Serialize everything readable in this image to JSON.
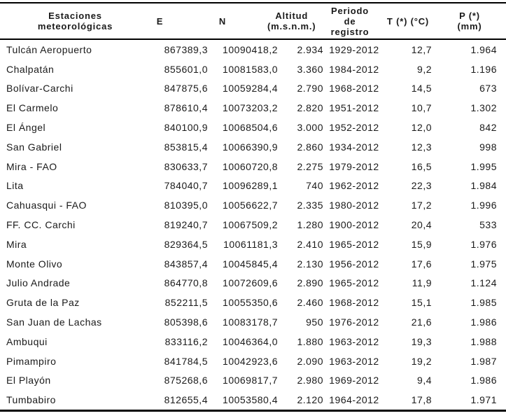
{
  "table": {
    "columns": [
      {
        "key": "station",
        "label": "Estaciones\nmeteorológicas"
      },
      {
        "key": "e",
        "label": "E"
      },
      {
        "key": "n",
        "label": "N"
      },
      {
        "key": "altitud",
        "label": "Altitud\n(m.s.n.m.)"
      },
      {
        "key": "periodo",
        "label": "Periodo\nde\nregistro"
      },
      {
        "key": "t",
        "label": "T (*) (°C)"
      },
      {
        "key": "p",
        "label": "P (*)\n(mm)"
      }
    ],
    "rows": [
      {
        "station": "Tulcán Aeropuerto",
        "e": "867389,3",
        "n": "10090418,2",
        "altitud": "2.934",
        "periodo": "1929-2012",
        "t": "12,7",
        "p": "1.964"
      },
      {
        "station": "Chalpatán",
        "e": "855601,0",
        "n": "10081583,0",
        "altitud": "3.360",
        "periodo": "1984-2012",
        "t": "9,2",
        "p": "1.196"
      },
      {
        "station": "Bolívar-Carchi",
        "e": "847875,6",
        "n": "10059284,4",
        "altitud": "2.790",
        "periodo": "1968-2012",
        "t": "14,5",
        "p": "673"
      },
      {
        "station": "El Carmelo",
        "e": "878610,4",
        "n": "10073203,2",
        "altitud": "2.820",
        "periodo": "1951-2012",
        "t": "10,7",
        "p": "1.302"
      },
      {
        "station": "El Ángel",
        "e": "840100,9",
        "n": "10068504,6",
        "altitud": "3.000",
        "periodo": "1952-2012",
        "t": "12,0",
        "p": "842"
      },
      {
        "station": "San Gabriel",
        "e": "853815,4",
        "n": "10066390,9",
        "altitud": "2.860",
        "periodo": "1934-2012",
        "t": "12,3",
        "p": "998"
      },
      {
        "station": "Mira - FAO",
        "e": "830633,7",
        "n": "10060720,8",
        "altitud": "2.275",
        "periodo": "1979-2012",
        "t": "16,5",
        "p": "1.995"
      },
      {
        "station": "Lita",
        "e": "784040,7",
        "n": "10096289,1",
        "altitud": "740",
        "periodo": "1962-2012",
        "t": "22,3",
        "p": "1.984"
      },
      {
        "station": "Cahuasqui - FAO",
        "e": "810395,0",
        "n": "10056622,7",
        "altitud": "2.335",
        "periodo": "1980-2012",
        "t": "17,2",
        "p": "1.996"
      },
      {
        "station": "FF. CC. Carchi",
        "e": "819240,7",
        "n": "10067509,2",
        "altitud": "1.280",
        "periodo": "1900-2012",
        "t": "20,4",
        "p": "533"
      },
      {
        "station": "Mira",
        "e": "829364,5",
        "n": "10061181,3",
        "altitud": "2.410",
        "periodo": "1965-2012",
        "t": "15,9",
        "p": "1.976"
      },
      {
        "station": "Monte Olivo",
        "e": "843857,4",
        "n": "10045845,4",
        "altitud": "2.130",
        "periodo": "1956-2012",
        "t": "17,6",
        "p": "1.975"
      },
      {
        "station": "Julio Andrade",
        "e": "864770,8",
        "n": "10072609,6",
        "altitud": "2.890",
        "periodo": "1965-2012",
        "t": "11,9",
        "p": "1.124"
      },
      {
        "station": "Gruta de la Paz",
        "e": "852211,5",
        "n": "10055350,6",
        "altitud": "2.460",
        "periodo": "1968-2012",
        "t": "15,1",
        "p": "1.985"
      },
      {
        "station": "San Juan de Lachas",
        "e": "805398,6",
        "n": "10083178,7",
        "altitud": "950",
        "periodo": "1976-2012",
        "t": "21,6",
        "p": "1.986"
      },
      {
        "station": "Ambuqui",
        "e": "833116,2",
        "n": "10046364,0",
        "altitud": "1.880",
        "periodo": "1963-2012",
        "t": "19,3",
        "p": "1.988"
      },
      {
        "station": "Pimampiro",
        "e": "841784,5",
        "n": "10042923,6",
        "altitud": "2.090",
        "periodo": "1963-2012",
        "t": "19,2",
        "p": "1.987"
      },
      {
        "station": "El Playón",
        "e": "875268,6",
        "n": "10069817,7",
        "altitud": "2.980",
        "periodo": "1969-2012",
        "t": "9,4",
        "p": "1.986"
      },
      {
        "station": "Tumbabiro",
        "e": "812655,4",
        "n": "10053580,4",
        "altitud": "2.120",
        "periodo": "1964-2012",
        "t": "17,8",
        "p": "1.971"
      }
    ]
  },
  "colors": {
    "text": "#1a1a1a",
    "border": "#000000",
    "background": "#ffffff"
  }
}
